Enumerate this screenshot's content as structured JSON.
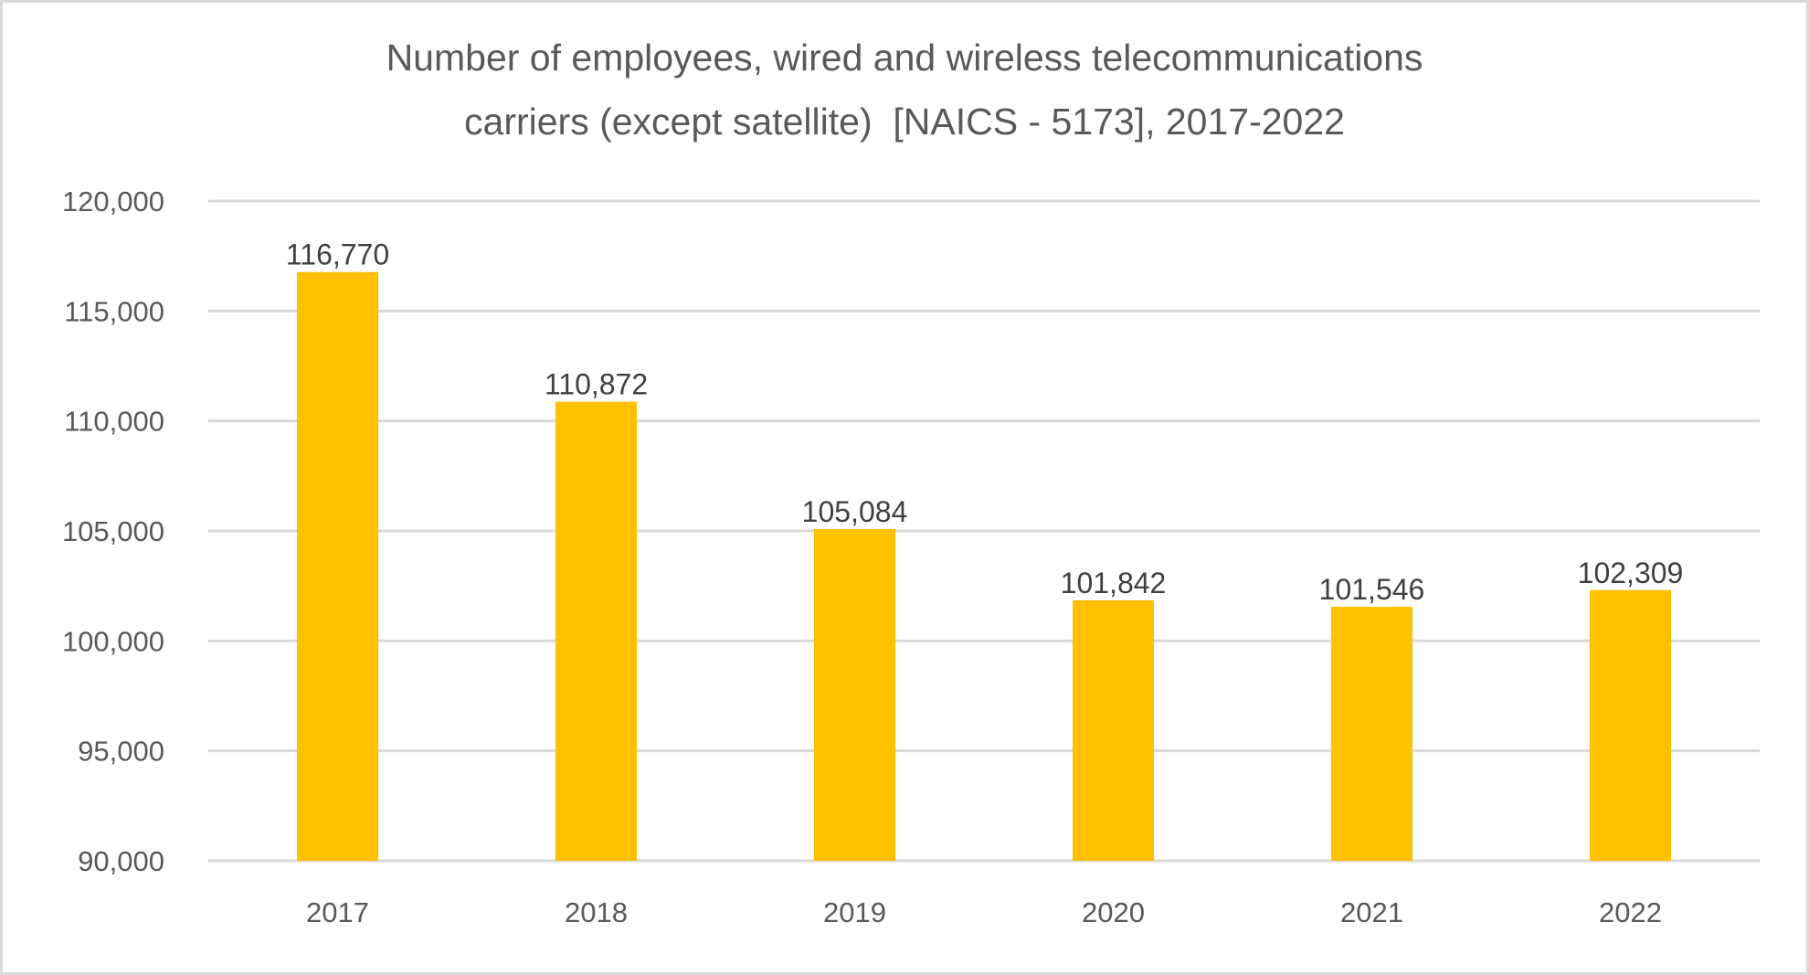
{
  "chart_data": {
    "type": "bar",
    "title": "Number of employees, wired and wireless telecommunications carriers (except satellite)  [NAICS - 5173], 2017-2022",
    "title_lines": [
      "Number of employees, wired and wireless telecommunications",
      "carriers (except satellite)  [NAICS - 5173], 2017-2022"
    ],
    "categories": [
      "2017",
      "2018",
      "2019",
      "2020",
      "2021",
      "2022"
    ],
    "values": [
      116770,
      110872,
      105084,
      101842,
      101546,
      102309
    ],
    "data_labels": [
      "116,770",
      "110,872",
      "105,084",
      "101,842",
      "101,546",
      "102,309"
    ],
    "xlabel": "",
    "ylabel": "",
    "ylim": [
      90000,
      120000
    ],
    "yticks": [
      90000,
      95000,
      100000,
      105000,
      110000,
      115000,
      120000
    ],
    "ytick_labels": [
      "90,000",
      "95,000",
      "100,000",
      "105,000",
      "110,000",
      "115,000",
      "120,000"
    ],
    "grid": true,
    "legend": "none",
    "colors": {
      "bar": "#ffc000",
      "grid": "#d9d9d9",
      "axis_text": "#595959",
      "data_label_text": "#404040",
      "title_text": "#595959",
      "border": "#d9d9d9"
    }
  }
}
